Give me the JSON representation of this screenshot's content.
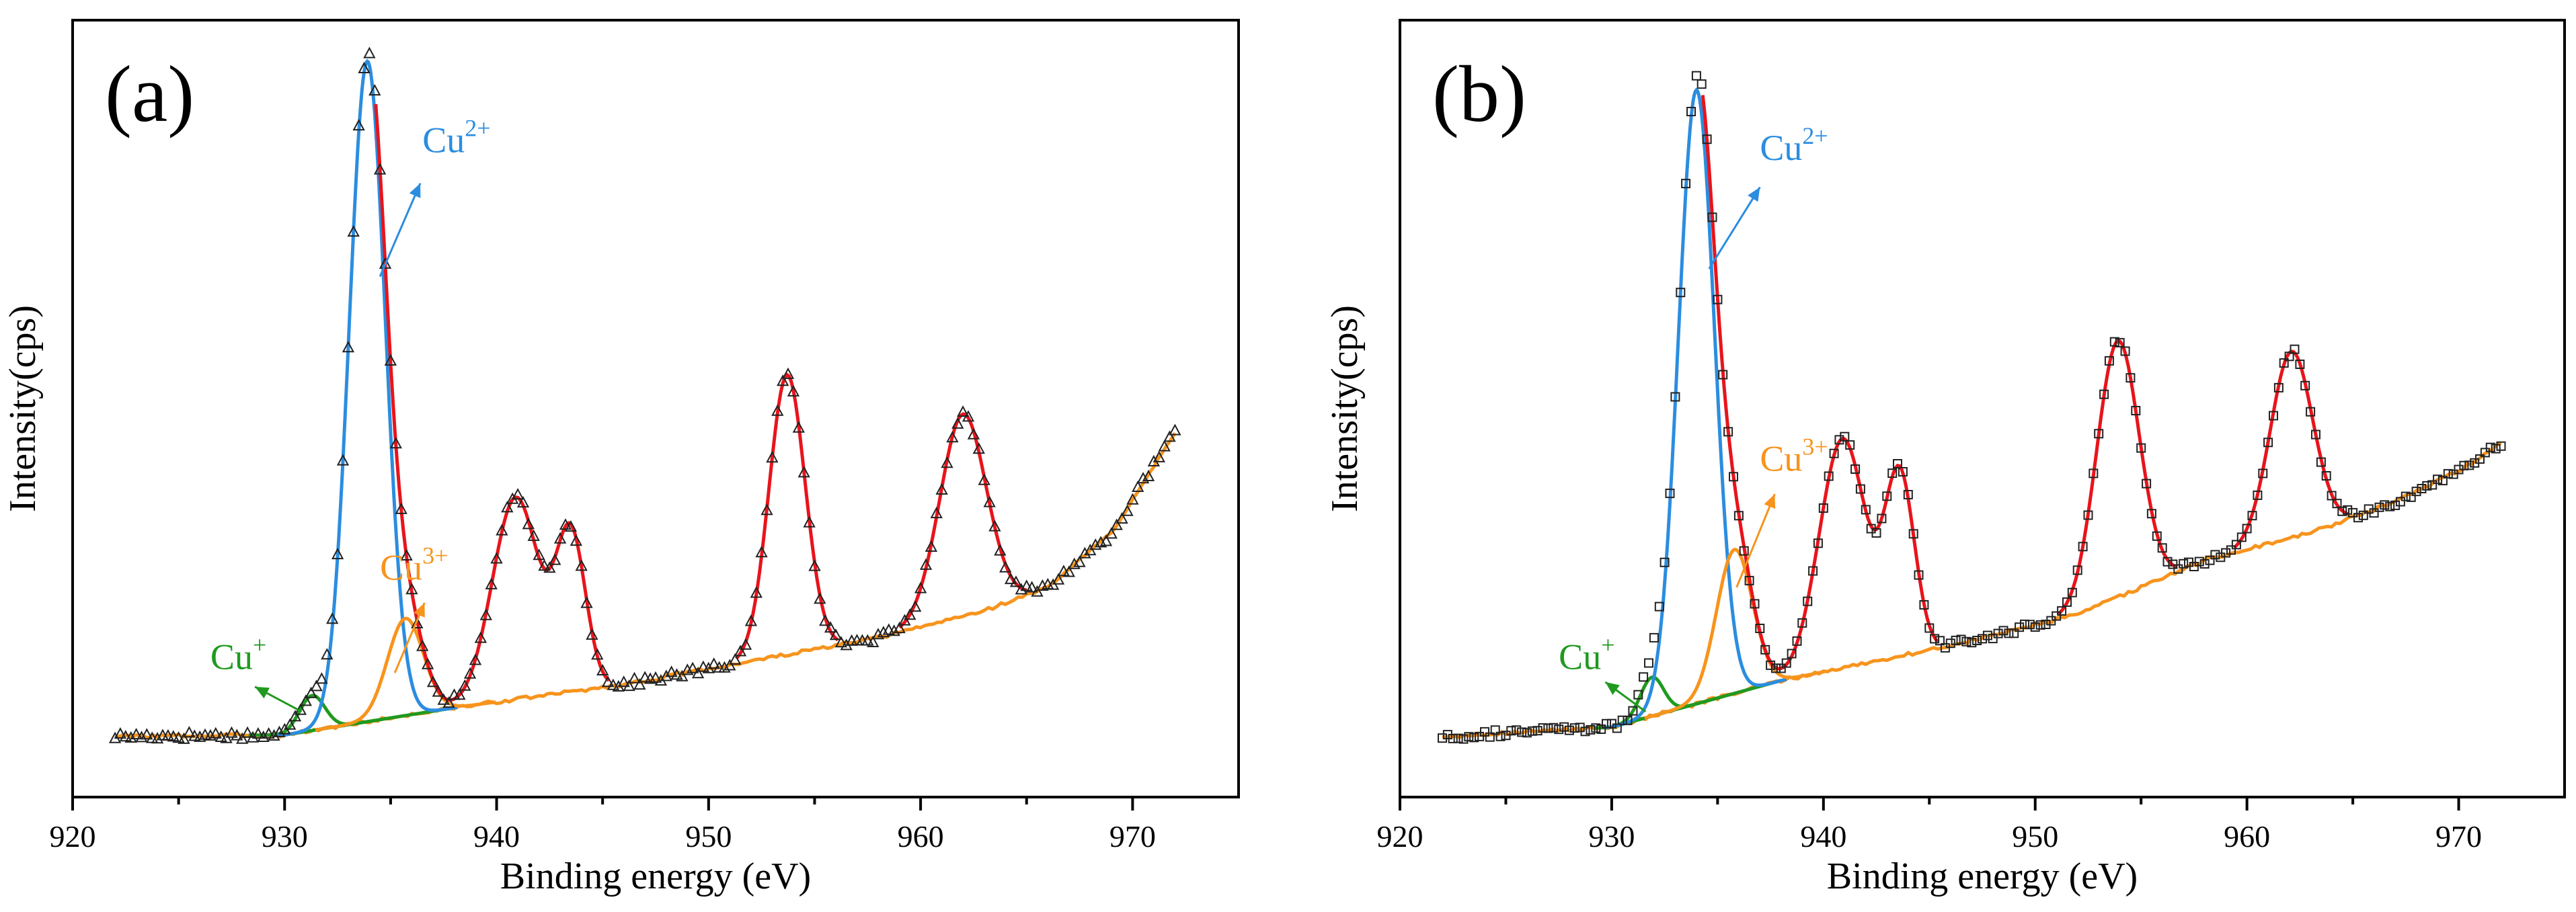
{
  "chart_data": [
    {
      "panel_label": "(a)",
      "type": "line",
      "xlabel": "Binding energy (eV)",
      "ylabel": "Intensity(cps)",
      "xlim": [
        920,
        975
      ],
      "ylim": [
        0,
        100
      ],
      "x_ticks": [
        "920",
        "930",
        "940",
        "950",
        "960",
        "970"
      ],
      "x_tick_values": [
        920,
        930,
        940,
        950,
        960,
        970
      ],
      "marker": "triangle",
      "x_range": [
        922,
        972
      ],
      "baseline": [
        [
          922,
          7.8
        ],
        [
          930,
          8.0
        ],
        [
          938,
          11.5
        ],
        [
          946,
          14.5
        ],
        [
          952,
          17.5
        ],
        [
          958,
          20.5
        ],
        [
          963,
          24
        ],
        [
          966,
          27
        ],
        [
          969,
          34
        ],
        [
          972,
          47
        ]
      ],
      "peaks": [
        {
          "name": "Cu+",
          "color": "#1f9a1f",
          "center": 931.3,
          "height": 4.5,
          "width": 0.6
        },
        {
          "name": "Cu2+",
          "color": "#2b8de0",
          "center": 933.9,
          "height": 85.0,
          "width": 0.85
        },
        {
          "name": "Cu3+",
          "color": "#f7941d",
          "center": 935.7,
          "height": 12.5,
          "width": 0.85
        },
        {
          "name": "sat",
          "color": "#e8141b",
          "center": 940.9,
          "height": 26.0,
          "width": 1.1
        },
        {
          "name": "sat",
          "color": "#e8141b",
          "center": 943.5,
          "height": 20.0,
          "width": 0.7
        },
        {
          "name": "sat",
          "color": "#e8141b",
          "center": 953.7,
          "height": 36.0,
          "width": 0.85
        },
        {
          "name": "sat",
          "color": "#e8141b",
          "center": 962.0,
          "height": 26.0,
          "width": 1.1
        }
      ],
      "annotations": [
        {
          "label": "Cu",
          "sup": "2+",
          "color": "#2b8de0",
          "text_at": [
            936.5,
            83
          ],
          "arrow_from": [
            934.5,
            67
          ],
          "arrow_to": [
            936.4,
            79
          ]
        },
        {
          "label": "Cu",
          "sup": "3+",
          "color": "#f7941d",
          "text_at": [
            934.5,
            28
          ],
          "arrow_from": [
            935.2,
            16
          ],
          "arrow_to": [
            936.6,
            25
          ]
        },
        {
          "label": "Cu",
          "sup": "+",
          "color": "#1f9a1f",
          "text_at": [
            926.5,
            16.5
          ],
          "arrow_from": [
            930.8,
            11
          ],
          "arrow_to": [
            928.6,
            14.2
          ]
        }
      ]
    },
    {
      "panel_label": "(b)",
      "type": "line",
      "xlabel": "Binding energy (eV)",
      "ylabel": "Intensity(cps)",
      "xlim": [
        920,
        975
      ],
      "ylim": [
        0,
        100
      ],
      "x_ticks": [
        "920",
        "930",
        "940",
        "950",
        "960",
        "970"
      ],
      "x_tick_values": [
        920,
        930,
        940,
        950,
        960,
        970
      ],
      "marker": "square",
      "x_range": [
        922,
        972
      ],
      "baseline": [
        [
          922,
          7.8
        ],
        [
          930,
          9.0
        ],
        [
          938,
          15.0
        ],
        [
          946,
          19.5
        ],
        [
          952,
          23.5
        ],
        [
          958,
          30.5
        ],
        [
          963,
          34
        ],
        [
          967,
          38
        ],
        [
          970,
          42
        ],
        [
          972,
          45.5
        ]
      ],
      "peaks": [
        {
          "name": "Cu+",
          "color": "#1f9a1f",
          "center": 931.9,
          "height": 5.0,
          "width": 0.55
        },
        {
          "name": "Cu2+",
          "color": "#2b8de0",
          "center": 934.0,
          "height": 79.0,
          "width": 0.85
        },
        {
          "name": "Cu3+",
          "color": "#f7941d",
          "center": 935.8,
          "height": 18.5,
          "width": 0.85
        },
        {
          "name": "sat",
          "color": "#e8141b",
          "center": 940.9,
          "height": 29.5,
          "width": 1.1
        },
        {
          "name": "sat",
          "color": "#e8141b",
          "center": 943.6,
          "height": 23.0,
          "width": 0.7
        },
        {
          "name": "sat",
          "color": "#e8141b",
          "center": 953.9,
          "height": 33.0,
          "width": 1.0
        },
        {
          "name": "sat",
          "color": "#e8141b",
          "center": 962.1,
          "height": 24.0,
          "width": 1.0
        }
      ],
      "annotations": [
        {
          "label": "Cu",
          "sup": "2+",
          "color": "#2b8de0",
          "text_at": [
            937.0,
            82
          ],
          "arrow_from": [
            934.6,
            68
          ],
          "arrow_to": [
            937.0,
            78.5
          ]
        },
        {
          "label": "Cu",
          "sup": "3+",
          "color": "#f7941d",
          "text_at": [
            937.0,
            42
          ],
          "arrow_from": [
            935.9,
            27
          ],
          "arrow_to": [
            937.7,
            39
          ]
        },
        {
          "label": "Cu",
          "sup": "+",
          "color": "#1f9a1f",
          "text_at": [
            927.5,
            16.5
          ],
          "arrow_from": [
            931.6,
            11
          ],
          "arrow_to": [
            929.7,
            14.8
          ]
        }
      ]
    }
  ]
}
